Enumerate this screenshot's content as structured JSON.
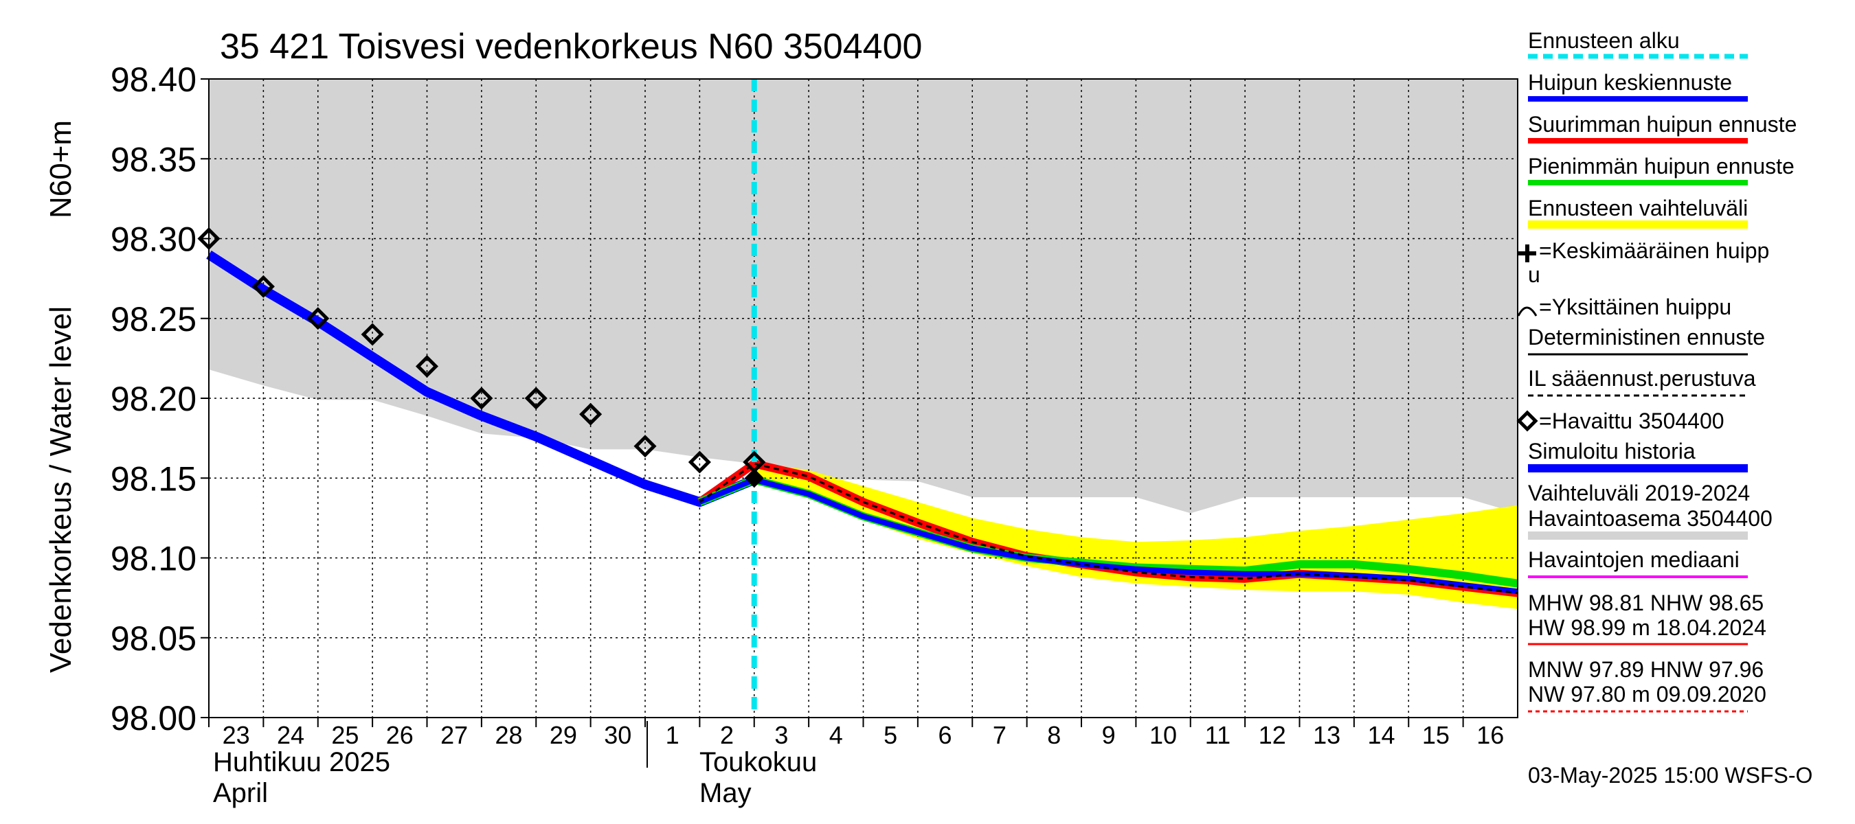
{
  "chart_data": {
    "type": "line",
    "title": "35 421 Toisvesi vedenkorkeus N60 3504400",
    "ylabel_main": "Vedenkorkeus / Water level",
    "ylabel_unit": "N60+m",
    "ylim": [
      98.0,
      98.4
    ],
    "yticks": [
      "98.00",
      "98.05",
      "98.10",
      "98.15",
      "98.20",
      "98.25",
      "98.30",
      "98.35",
      "98.40"
    ],
    "x_day_range": [
      0,
      24
    ],
    "x_tick_labels": [
      "23",
      "24",
      "25",
      "26",
      "27",
      "28",
      "29",
      "30",
      "1",
      "2",
      "3",
      "4",
      "5",
      "6",
      "7",
      "8",
      "9",
      "10",
      "11",
      "12",
      "13",
      "14",
      "15",
      "16"
    ],
    "month_labels": {
      "april_fi": "Huhtikuu  2025",
      "april_en": "April",
      "may_fi": "Toukokuu",
      "may_en": "May"
    },
    "forecast_start_day": 10,
    "history_range": {
      "x": [
        0,
        1,
        2,
        3,
        4,
        5,
        6,
        7,
        8,
        9,
        10,
        11,
        12,
        13,
        14,
        15,
        16,
        17,
        18,
        19,
        20,
        21,
        22,
        23,
        24
      ],
      "upper": [
        98.4,
        98.4,
        98.4,
        98.4,
        98.4,
        98.4,
        98.4,
        98.4,
        98.4,
        98.4,
        98.4,
        98.4,
        98.4,
        98.4,
        98.4,
        98.4,
        98.4,
        98.4,
        98.4,
        98.4,
        98.4,
        98.4,
        98.4,
        98.4,
        98.4
      ],
      "lower": [
        98.218,
        98.208,
        98.199,
        98.199,
        98.189,
        98.178,
        98.175,
        98.168,
        98.168,
        98.163,
        98.159,
        98.149,
        98.149,
        98.148,
        98.138,
        98.138,
        98.138,
        98.138,
        98.128,
        98.138,
        98.138,
        98.138,
        98.138,
        98.138,
        98.128
      ]
    },
    "forecast_range": {
      "x": [
        10,
        11,
        12,
        13,
        14,
        15,
        16,
        17,
        18,
        19,
        20,
        21,
        22,
        23,
        24
      ],
      "upper": [
        98.16,
        98.155,
        98.145,
        98.135,
        98.125,
        98.118,
        98.113,
        98.11,
        98.111,
        98.113,
        98.117,
        98.12,
        98.124,
        98.128,
        98.133
      ],
      "lower": [
        98.15,
        98.14,
        98.124,
        98.112,
        98.103,
        98.095,
        98.088,
        98.084,
        98.082,
        98.08,
        98.079,
        98.079,
        98.077,
        98.072,
        98.068
      ]
    },
    "series": [
      {
        "name": "Simuloitu historia",
        "color": "#0000ff",
        "x": [
          0,
          1,
          2,
          3,
          4,
          5,
          6,
          7,
          8,
          9,
          10
        ],
        "values": [
          98.29,
          98.268,
          98.248,
          98.226,
          98.204,
          98.189,
          98.176,
          98.161,
          98.146,
          98.135,
          98.149
        ]
      },
      {
        "name": "Suurimman huipun ennuste",
        "color": "#ff0000",
        "x": [
          9,
          10,
          11,
          12,
          13,
          14,
          15,
          16,
          17,
          18,
          19,
          20,
          21,
          22,
          23,
          24
        ],
        "values": [
          98.135,
          98.159,
          98.151,
          98.135,
          98.122,
          98.11,
          98.101,
          98.096,
          98.091,
          98.088,
          98.087,
          98.09,
          98.088,
          98.086,
          98.082,
          98.078
        ]
      },
      {
        "name": "Pienimmän huipun ennuste",
        "color": "#00dd00",
        "x": [
          9,
          10,
          11,
          12,
          13,
          14,
          15,
          16,
          17,
          18,
          19,
          20,
          21,
          22,
          23,
          24
        ],
        "values": [
          98.135,
          98.149,
          98.14,
          98.126,
          98.116,
          98.106,
          98.1,
          98.097,
          98.094,
          98.093,
          98.092,
          98.096,
          98.096,
          98.093,
          98.089,
          98.084
        ]
      },
      {
        "name": "Huipun keskiennuste",
        "color": "#0000ff",
        "x": [
          9,
          10,
          11,
          12,
          13,
          14,
          15,
          16,
          17,
          18,
          19,
          20,
          21,
          22,
          23,
          24
        ],
        "values": [
          98.135,
          98.149,
          98.14,
          98.126,
          98.116,
          98.106,
          98.1,
          98.096,
          98.093,
          98.091,
          98.09,
          98.09,
          98.089,
          98.087,
          98.083,
          98.079
        ]
      },
      {
        "name": "IL sääennust.perustuva",
        "color": "#000000",
        "x": [
          9,
          10,
          11,
          12,
          13,
          14,
          15,
          16,
          17,
          18,
          19,
          20,
          21,
          22,
          23,
          24
        ],
        "values": [
          98.135,
          98.159,
          98.151,
          98.135,
          98.122,
          98.11,
          98.101,
          98.096,
          98.091,
          98.088,
          98.087,
          98.09,
          98.088,
          98.086,
          98.082,
          98.078
        ]
      }
    ],
    "observed": {
      "name": "Havaittu 3504400",
      "x": [
        0,
        1,
        2,
        3,
        4,
        5,
        6,
        7,
        8,
        9,
        10
      ],
      "values": [
        98.3,
        98.27,
        98.25,
        98.24,
        98.22,
        98.2,
        98.2,
        98.19,
        98.17,
        98.16,
        98.16
      ]
    },
    "current_peak_marker": {
      "x": 10,
      "value": 98.15
    },
    "legend": {
      "forecast_start": "Ennusteen alku",
      "mean_forecast": "Huipun keskiennuste",
      "max_forecast": "Suurimman huipun ennuste",
      "min_forecast": "Pienimmän huipun ennuste",
      "range": "Ennusteen vaihteluväli",
      "avg_peak_line1": "=Keskimääräinen huipp",
      "avg_peak_line2": "u",
      "single_peak": "=Yksittäinen huippu",
      "deterministic": "Deterministinen ennuste",
      "il_based": "IL sääennust.perustuva",
      "observed": "=Havaittu 3504400",
      "simulated": "Simuloitu historia",
      "variation_line1": "Vaihteluväli 2019-2024",
      "variation_line2": " Havaintoasema 3504400",
      "median": "Havaintojen mediaani",
      "mhw_line": "MHW  98.81 NHW  98.65",
      "hw_line": "HW  98.99 m 18.04.2024",
      "mnw_line": "MNW  97.89 HNW  97.96",
      "nw_line": "NW  97.80 m 09.09.2020"
    },
    "footer": "03-May-2025 15:00 WSFS-O",
    "colors": {
      "history_band": "#d3d3d3",
      "forecast_band": "#ffff00",
      "forecast_start": "#00e5ee",
      "mean": "#0000ff",
      "max": "#ff0000",
      "min": "#00dd00",
      "median": "#ff00ff",
      "grid": "#000000"
    }
  }
}
